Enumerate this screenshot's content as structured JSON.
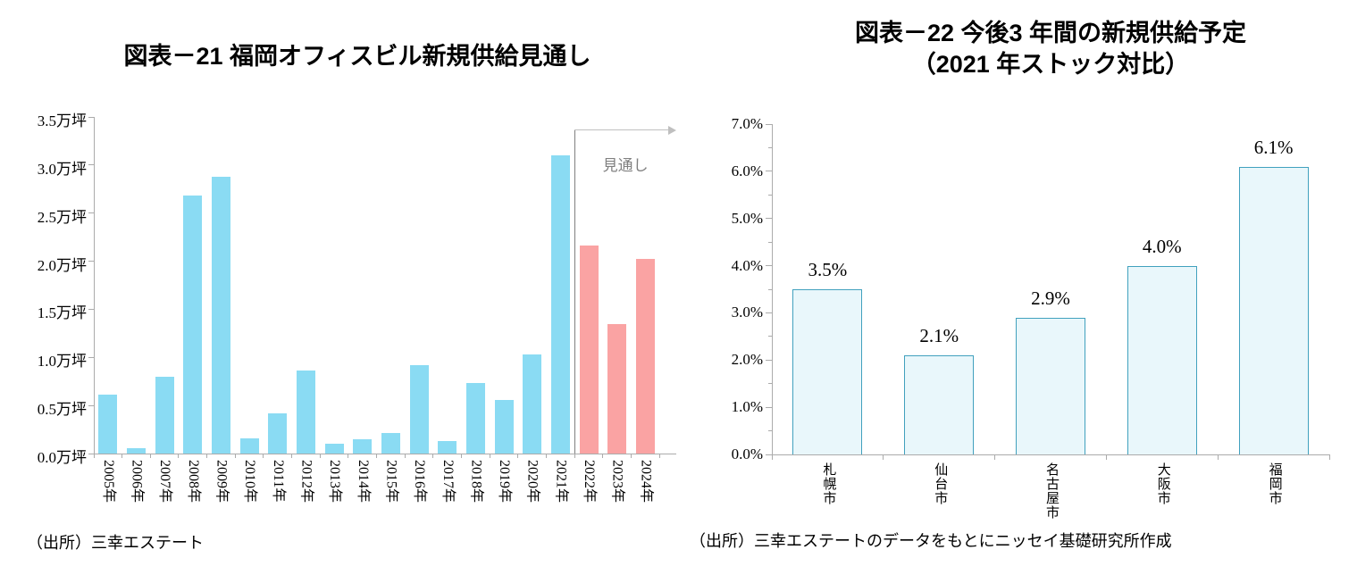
{
  "page": {
    "background": "#ffffff"
  },
  "chart_data": [
    {
      "id": "fig21",
      "type": "bar",
      "title": "図表－21 福岡オフィスビル新規供給見通し",
      "source": "（出所）三幸エステート",
      "unit": "万坪",
      "categories": [
        "2005年",
        "2006年",
        "2007年",
        "2008年",
        "2009年",
        "2010年",
        "2011年",
        "2012年",
        "2013年",
        "2014年",
        "2015年",
        "2016年",
        "2017年",
        "2018年",
        "2019年",
        "2020年",
        "2021年",
        "2022年",
        "2023年",
        "2024年"
      ],
      "values": [
        0.61,
        0.06,
        0.8,
        2.68,
        2.88,
        0.16,
        0.42,
        0.86,
        0.1,
        0.15,
        0.21,
        0.92,
        0.13,
        0.73,
        0.56,
        1.03,
        3.1,
        2.16,
        1.35,
        2.02
      ],
      "ylim": [
        0,
        3.5
      ],
      "ytick_step": 0.5,
      "ytick_labels": [
        "0.0万坪",
        "0.5万坪",
        "1.0万坪",
        "1.5万坪",
        "2.0万坪",
        "2.5万坪",
        "3.0万坪",
        "3.5万坪"
      ],
      "gridlines": false,
      "legend": "none",
      "forecast_start_index": 17,
      "annotation": "見通し",
      "bar_color_actual": "#8ADBF3",
      "bar_color_forecast": "#FAA3A3",
      "axis_color": "#ABABAB",
      "separator_color": "#808080",
      "arrow_color": "#BFBFBF",
      "annotation_color": "#808080"
    },
    {
      "id": "fig22",
      "type": "bar",
      "title_lines": [
        "図表－22 今後3 年間の新規供給予定",
        "（2021 年ストック対比）"
      ],
      "source": "（出所）三幸エステートのデータをもとにニッセイ基礎研究所作成",
      "categories": [
        "札幌市",
        "仙台市",
        "名古屋市",
        "大阪市",
        "福岡市"
      ],
      "values": [
        3.5,
        2.1,
        2.9,
        4.0,
        6.1
      ],
      "data_labels": [
        "3.5%",
        "2.1%",
        "2.9%",
        "4.0%",
        "6.1%"
      ],
      "ylim": [
        0,
        7.0
      ],
      "ytick_step": 1.0,
      "ytick_minor_step": 0.5,
      "ytick_labels": [
        "0.0%",
        "1.0%",
        "2.0%",
        "3.0%",
        "4.0%",
        "5.0%",
        "6.0%",
        "7.0%"
      ],
      "gridlines": false,
      "legend": "none",
      "bar_fill": "#E9F7FB",
      "bar_border": "#41A1BE",
      "axis_color": "#ABABAB"
    }
  ]
}
